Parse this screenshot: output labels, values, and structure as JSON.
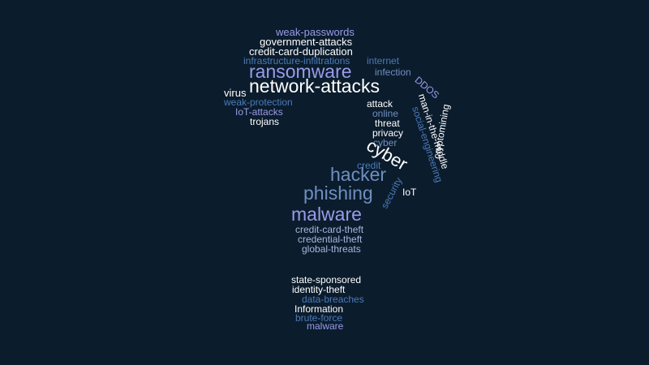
{
  "cloud": {
    "words": [
      {
        "text": "weak-passwords",
        "color": "#9a9ce8"
      },
      {
        "text": "government-attacks",
        "color": "#ffffff"
      },
      {
        "text": "credit-card-duplication",
        "color": "#ffffff"
      },
      {
        "text": "infrastructure-infiltrations",
        "color": "#4b7bb8"
      },
      {
        "text": "internet",
        "color": "#4b7bb8"
      },
      {
        "text": "ransomware",
        "color": "#9a9ce8"
      },
      {
        "text": "infection",
        "color": "#6f8fc0"
      },
      {
        "text": "network-attacks",
        "color": "#ffffff"
      },
      {
        "text": "DDOS",
        "color": "#9a9ce8"
      },
      {
        "text": "virus",
        "color": "#ffffff"
      },
      {
        "text": "weak-protection",
        "color": "#4b7bb8"
      },
      {
        "text": "IoT-attacks",
        "color": "#9a9ce8"
      },
      {
        "text": "trojans",
        "color": "#ffffff"
      },
      {
        "text": "attack",
        "color": "#ffffff"
      },
      {
        "text": "online",
        "color": "#6f8fc0"
      },
      {
        "text": "threat",
        "color": "#ffffff"
      },
      {
        "text": "privacy",
        "color": "#ffffff"
      },
      {
        "text": "cyber",
        "color": "#6f8fc0"
      },
      {
        "text": "man-in-the-middle",
        "color": "#ffffff"
      },
      {
        "text": "social-engineering",
        "color": "#4b7bb8"
      },
      {
        "text": "cryptomining",
        "color": "#ffffff"
      },
      {
        "text": "cyber",
        "color": "#ffffff"
      },
      {
        "text": "credit",
        "color": "#4b7bb8"
      },
      {
        "text": "hacker",
        "color": "#6f8fc0"
      },
      {
        "text": "security",
        "color": "#4b7bb8"
      },
      {
        "text": "IoT",
        "color": "#ffffff"
      },
      {
        "text": "phishing",
        "color": "#6f8fc0"
      },
      {
        "text": "malware",
        "color": "#9a9ce8"
      },
      {
        "text": "credit-card-theft",
        "color": "#a9b6dd"
      },
      {
        "text": "credential-theft",
        "color": "#a9b6dd"
      },
      {
        "text": "global-threats",
        "color": "#a9b6dd"
      },
      {
        "text": "state-sponsored",
        "color": "#ffffff"
      },
      {
        "text": "identity-theft",
        "color": "#ffffff"
      },
      {
        "text": "data-breaches",
        "color": "#4b7bb8"
      },
      {
        "text": "Information",
        "color": "#ffffff"
      },
      {
        "text": "brute-force",
        "color": "#4b7bb8"
      },
      {
        "text": "malware",
        "color": "#9a9ce8"
      }
    ]
  }
}
